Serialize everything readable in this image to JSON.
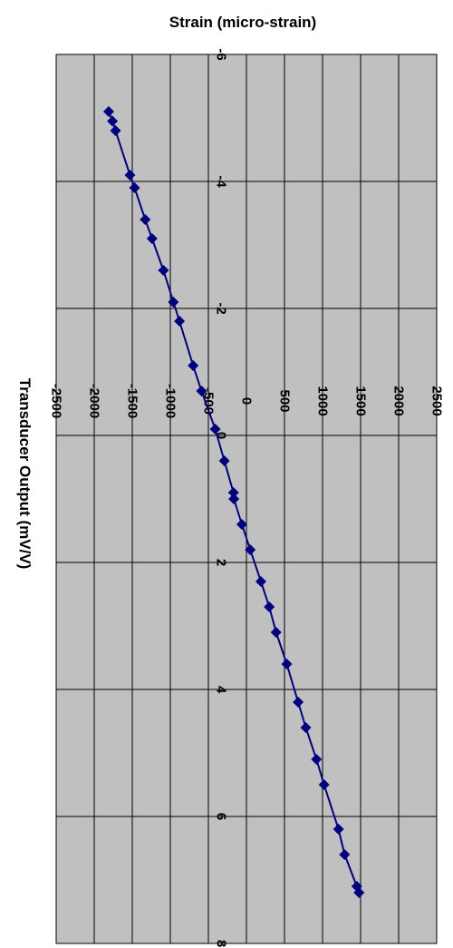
{
  "chart_data": {
    "type": "line",
    "orientation": "rotated-90-clockwise",
    "title": "",
    "xlabel": "Strain (micro-strain)",
    "ylabel": "Transducer Output (mV/V)",
    "xlim": [
      -6,
      8
    ],
    "ylim": [
      -2500,
      2500
    ],
    "xticks": [
      "-6",
      "-4",
      "-2",
      "0",
      "2",
      "4",
      "6",
      "8"
    ],
    "yticks": [
      "-2500",
      "-2000",
      "-1500",
      "-1000",
      "-500",
      "0",
      "500",
      "1000",
      "1500",
      "2000",
      "2500"
    ],
    "grid": true,
    "legend": "none",
    "colors": {
      "plot_bg": "#c0c0c0",
      "series": "#000080",
      "grid": "#000000"
    },
    "series": [
      {
        "marker": "diamond",
        "x": [
          -5.1,
          -4.95,
          -4.8,
          -4.1,
          -3.9,
          -3.4,
          -3.1,
          -2.6,
          -2.1,
          -1.8,
          -1.1,
          -0.7,
          -0.1,
          0.4,
          0.9,
          1.0,
          1.4,
          1.8,
          2.3,
          2.7,
          3.1,
          3.6,
          4.2,
          4.6,
          5.1,
          5.5,
          6.2,
          6.6,
          7.1,
          7.2
        ],
        "y": [
          -1810,
          -1760,
          -1720,
          -1530,
          -1470,
          -1330,
          -1240,
          -1090,
          -960,
          -880,
          -700,
          -590,
          -410,
          -290,
          -170,
          -165,
          -60,
          50,
          190,
          300,
          390,
          530,
          680,
          780,
          920,
          1020,
          1210,
          1290,
          1450,
          1480
        ]
      }
    ]
  }
}
